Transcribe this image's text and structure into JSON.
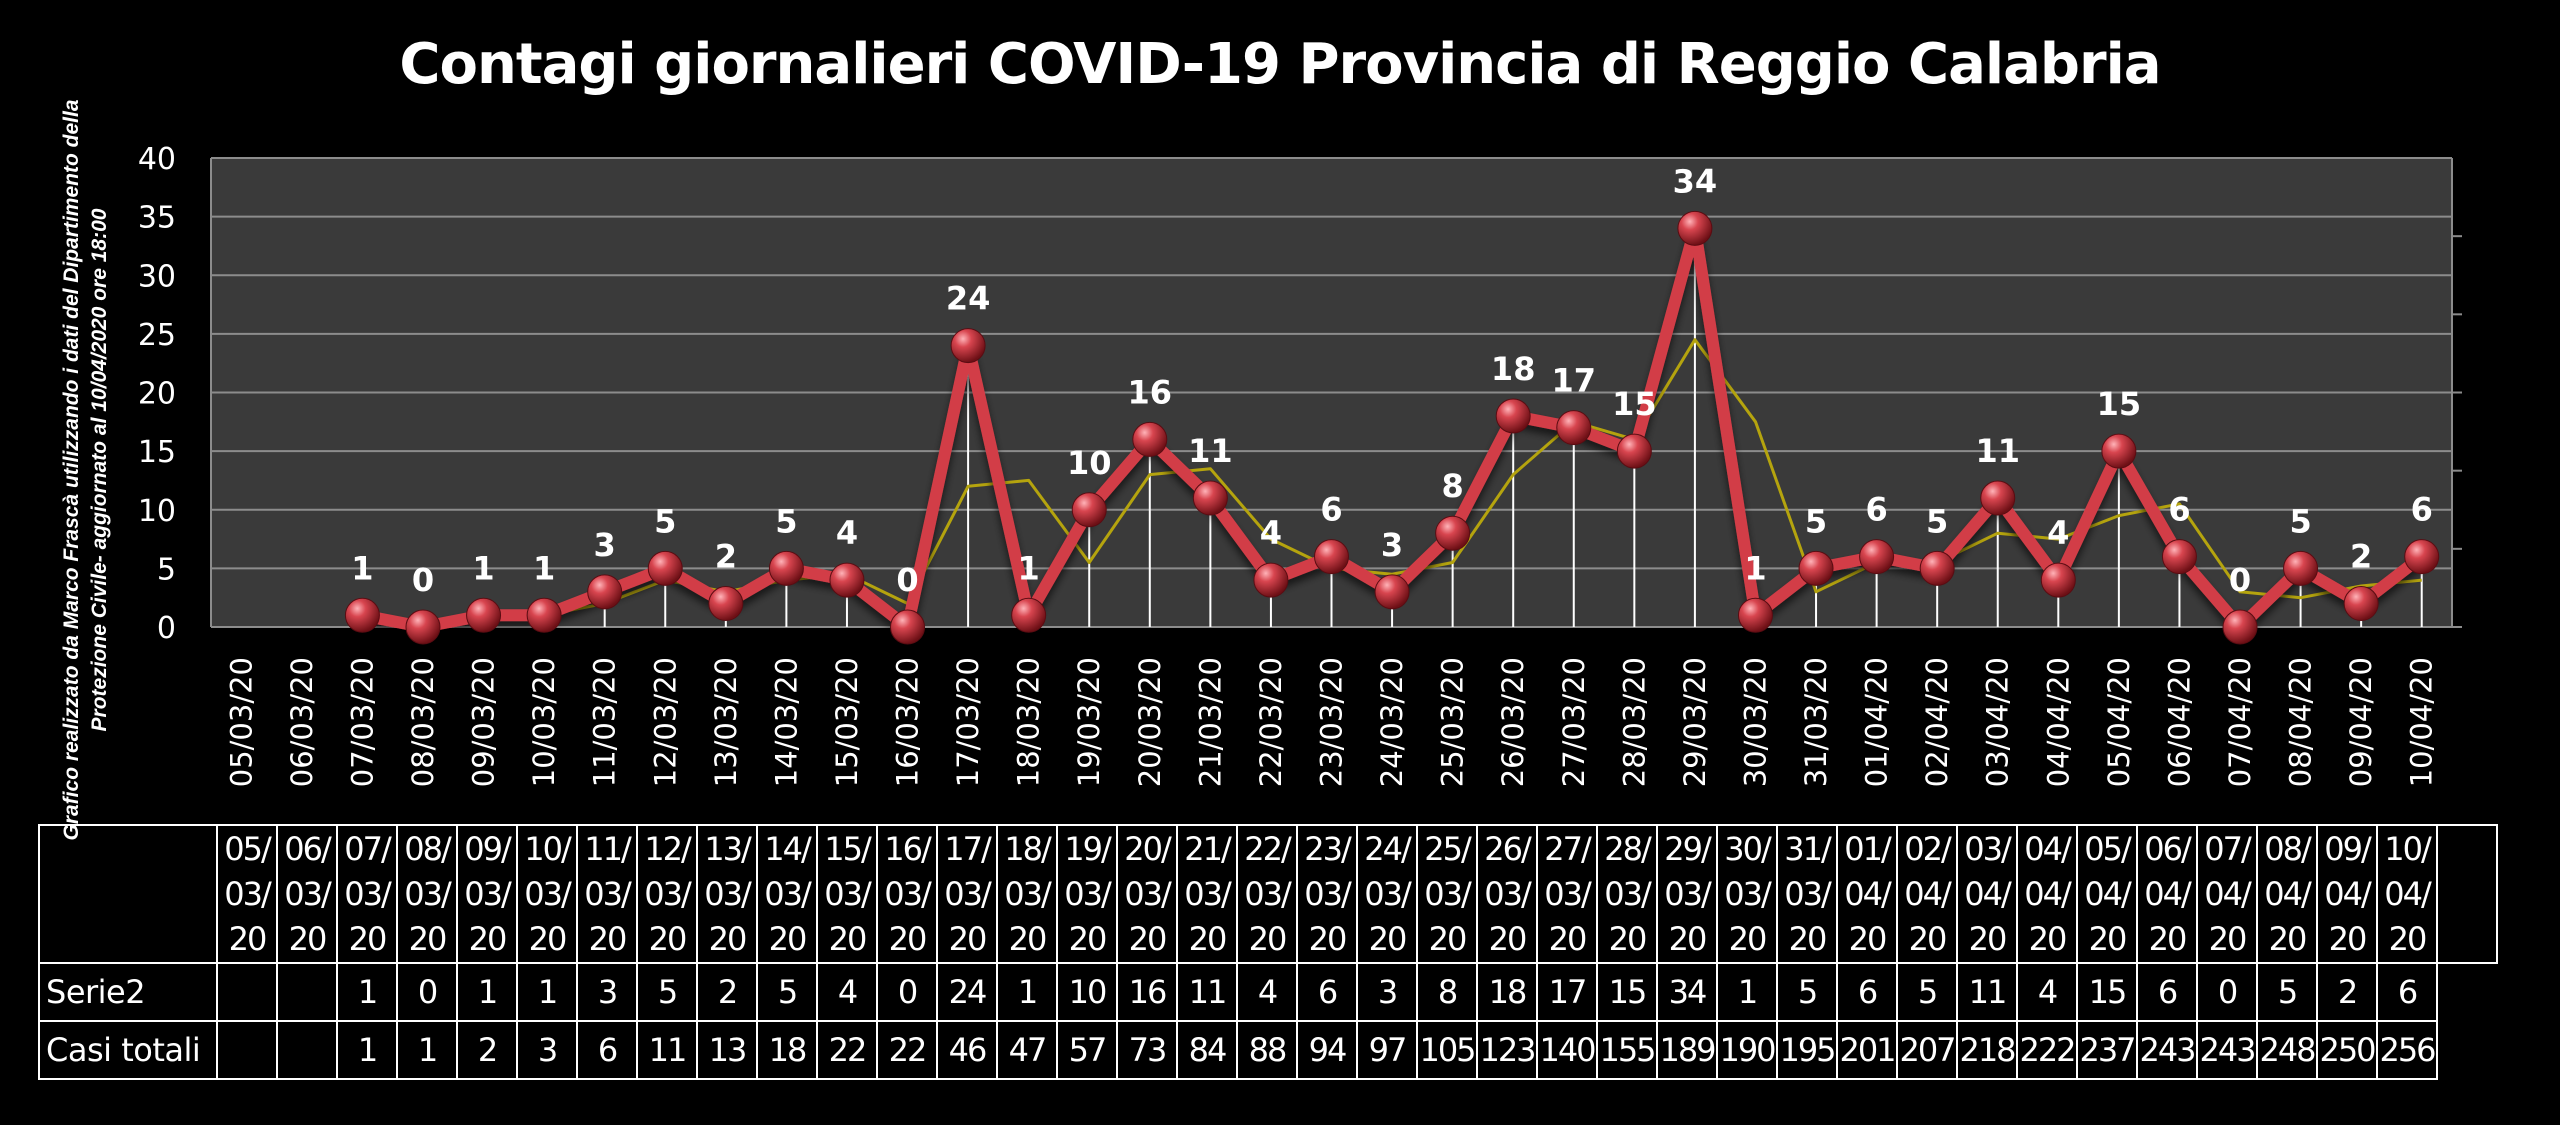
{
  "title": "Contagi  giornalieri COVID-19 Provincia di Reggio Calabria",
  "side_note": [
    "Grafico  realizzato da Marco Frascà  utilizzando i dati del Dipartimento  della",
    "Protezione Civile- aggiornato al  10/04/2020 ore 18:00"
  ],
  "colors": {
    "background": "#000000",
    "plot_area": "#3a3a3a",
    "main_line": "#d23c46",
    "marker": "#c0303a",
    "trend_line": "#b5a40e",
    "gridline": "#8c8c8c",
    "droplines": "#ffffff"
  },
  "chart_data": {
    "type": "line",
    "title": "Contagi  giornalieri COVID-19 Provincia di Reggio Calabria",
    "xlabel": "",
    "ylabel": "",
    "ylim": [
      0,
      40
    ],
    "yticks": [
      0,
      5,
      10,
      15,
      20,
      25,
      30,
      35,
      40
    ],
    "grid": true,
    "categories": [
      "05/03/20",
      "06/03/20",
      "07/03/20",
      "08/03/20",
      "09/03/20",
      "10/03/20",
      "11/03/20",
      "12/03/20",
      "13/03/20",
      "14/03/20",
      "15/03/20",
      "16/03/20",
      "17/03/20",
      "18/03/20",
      "19/03/20",
      "20/03/20",
      "21/03/20",
      "22/03/20",
      "23/03/20",
      "24/03/20",
      "25/03/20",
      "26/03/20",
      "27/03/20",
      "28/03/20",
      "29/03/20",
      "30/03/20",
      "31/03/20",
      "01/04/20",
      "02/04/20",
      "03/04/20",
      "04/04/20",
      "05/04/20",
      "06/04/20",
      "07/04/20",
      "08/04/20",
      "09/04/20",
      "10/04/20"
    ],
    "series": [
      {
        "name": "Serie2",
        "values": [
          null,
          null,
          1,
          0,
          1,
          1,
          3,
          5,
          2,
          5,
          4,
          0,
          24,
          1,
          10,
          16,
          11,
          4,
          6,
          3,
          8,
          18,
          17,
          15,
          34,
          1,
          5,
          6,
          5,
          11,
          4,
          15,
          6,
          0,
          5,
          2,
          6
        ]
      },
      {
        "name": "",
        "values": [
          null,
          null,
          1,
          0.5,
          0.5,
          1,
          2,
          4,
          3,
          4,
          4.5,
          2,
          12,
          12.5,
          5.5,
          13,
          13.5,
          7.5,
          5,
          4.5,
          5.5,
          13,
          17.5,
          16,
          24.5,
          17.5,
          3,
          5.5,
          5.5,
          8,
          7.5,
          9.5,
          10.5,
          3,
          2.5,
          3.5,
          4
        ]
      }
    ],
    "table": {
      "row_labels": [
        "Serie2",
        "Casi totali"
      ],
      "header_cells": [
        [
          "05/",
          "03/",
          "20"
        ],
        [
          "06/",
          "03/",
          "20"
        ],
        [
          "07/",
          "03/",
          "20"
        ],
        [
          "08/",
          "03/",
          "20"
        ],
        [
          "09/",
          "03/",
          "20"
        ],
        [
          "10/",
          "03/",
          "20"
        ],
        [
          "11/",
          "03/",
          "20"
        ],
        [
          "12/",
          "03/",
          "20"
        ],
        [
          "13/",
          "03/",
          "20"
        ],
        [
          "14/",
          "03/",
          "20"
        ],
        [
          "15/",
          "03/",
          "20"
        ],
        [
          "16/",
          "03/",
          "20"
        ],
        [
          "17/",
          "03/",
          "20"
        ],
        [
          "18/",
          "03/",
          "20"
        ],
        [
          "19/",
          "03/",
          "20"
        ],
        [
          "20/",
          "03/",
          "20"
        ],
        [
          "21/",
          "03/",
          "20"
        ],
        [
          "22/",
          "03/",
          "20"
        ],
        [
          "23/",
          "03/",
          "20"
        ],
        [
          "24/",
          "03/",
          "20"
        ],
        [
          "25/",
          "03/",
          "20"
        ],
        [
          "26/",
          "03/",
          "20"
        ],
        [
          "27/",
          "03/",
          "20"
        ],
        [
          "28/",
          "03/",
          "20"
        ],
        [
          "29/",
          "03/",
          "20"
        ],
        [
          "30/",
          "03/",
          "20"
        ],
        [
          "31/",
          "03/",
          "20"
        ],
        [
          "01/",
          "04/",
          "20"
        ],
        [
          "02/",
          "04/",
          "20"
        ],
        [
          "03/",
          "04/",
          "20"
        ],
        [
          "04/",
          "04/",
          "20"
        ],
        [
          "05/",
          "04/",
          "20"
        ],
        [
          "06/",
          "04/",
          "20"
        ],
        [
          "07/",
          "04/",
          "20"
        ],
        [
          "08/",
          "04/",
          "20"
        ],
        [
          "09/",
          "04/",
          "20"
        ],
        [
          "10/",
          "04/",
          "20"
        ]
      ],
      "serie2": [
        "",
        "",
        "1",
        "0",
        "1",
        "1",
        "3",
        "5",
        "2",
        "5",
        "4",
        "0",
        "24",
        "1",
        "10",
        "16",
        "11",
        "4",
        "6",
        "3",
        "8",
        "18",
        "17",
        "15",
        "34",
        "1",
        "5",
        "6",
        "5",
        "11",
        "4",
        "15",
        "6",
        "0",
        "5",
        "2",
        "6"
      ],
      "casi_totali": [
        "",
        "",
        "1",
        "1",
        "2",
        "3",
        "6",
        "11",
        "13",
        "18",
        "22",
        "22",
        "46",
        "47",
        "57",
        "73",
        "84",
        "88",
        "94",
        "97",
        "105",
        "123",
        "140",
        "155",
        "189",
        "190",
        "195",
        "201",
        "207",
        "218",
        "222",
        "237",
        "243",
        "243",
        "248",
        "250",
        "256"
      ]
    }
  }
}
